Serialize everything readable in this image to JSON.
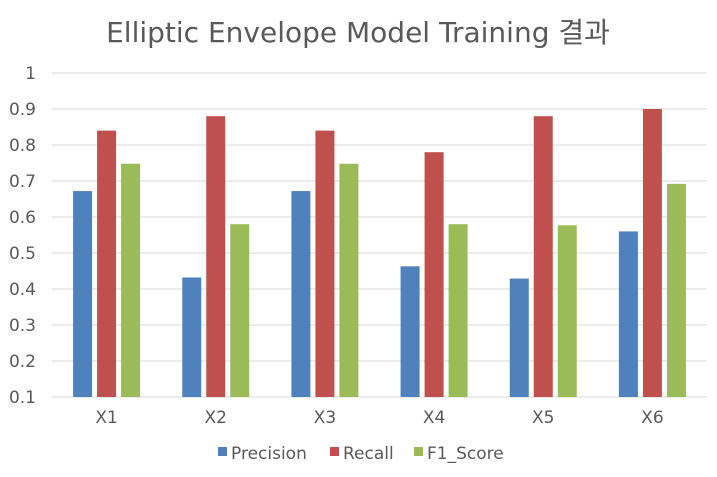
{
  "chart_data": {
    "type": "bar",
    "title": "Elliptic Envelope Model Training 결과",
    "xlabel": "",
    "ylabel": "",
    "categories": [
      "X1",
      "X2",
      "X3",
      "X4",
      "X5",
      "X6"
    ],
    "ylim": [
      0.1,
      1.0
    ],
    "yticks": [
      "0.1",
      "0.2",
      "0.3",
      "0.4",
      "0.5",
      "0.6",
      "0.7",
      "0.8",
      "0.9",
      "1"
    ],
    "grid": true,
    "legend_position": "bottom",
    "series": [
      {
        "name": "Precision",
        "color": "#4f81bd",
        "values": [
          0.672,
          0.432,
          0.672,
          0.463,
          0.429,
          0.56
        ]
      },
      {
        "name": "Recall",
        "color": "#c0504d",
        "values": [
          0.84,
          0.88,
          0.84,
          0.78,
          0.88,
          0.9
        ]
      },
      {
        "name": "F1_Score",
        "color": "#9bbb59",
        "values": [
          0.748,
          0.58,
          0.748,
          0.58,
          0.577,
          0.692
        ]
      }
    ]
  }
}
